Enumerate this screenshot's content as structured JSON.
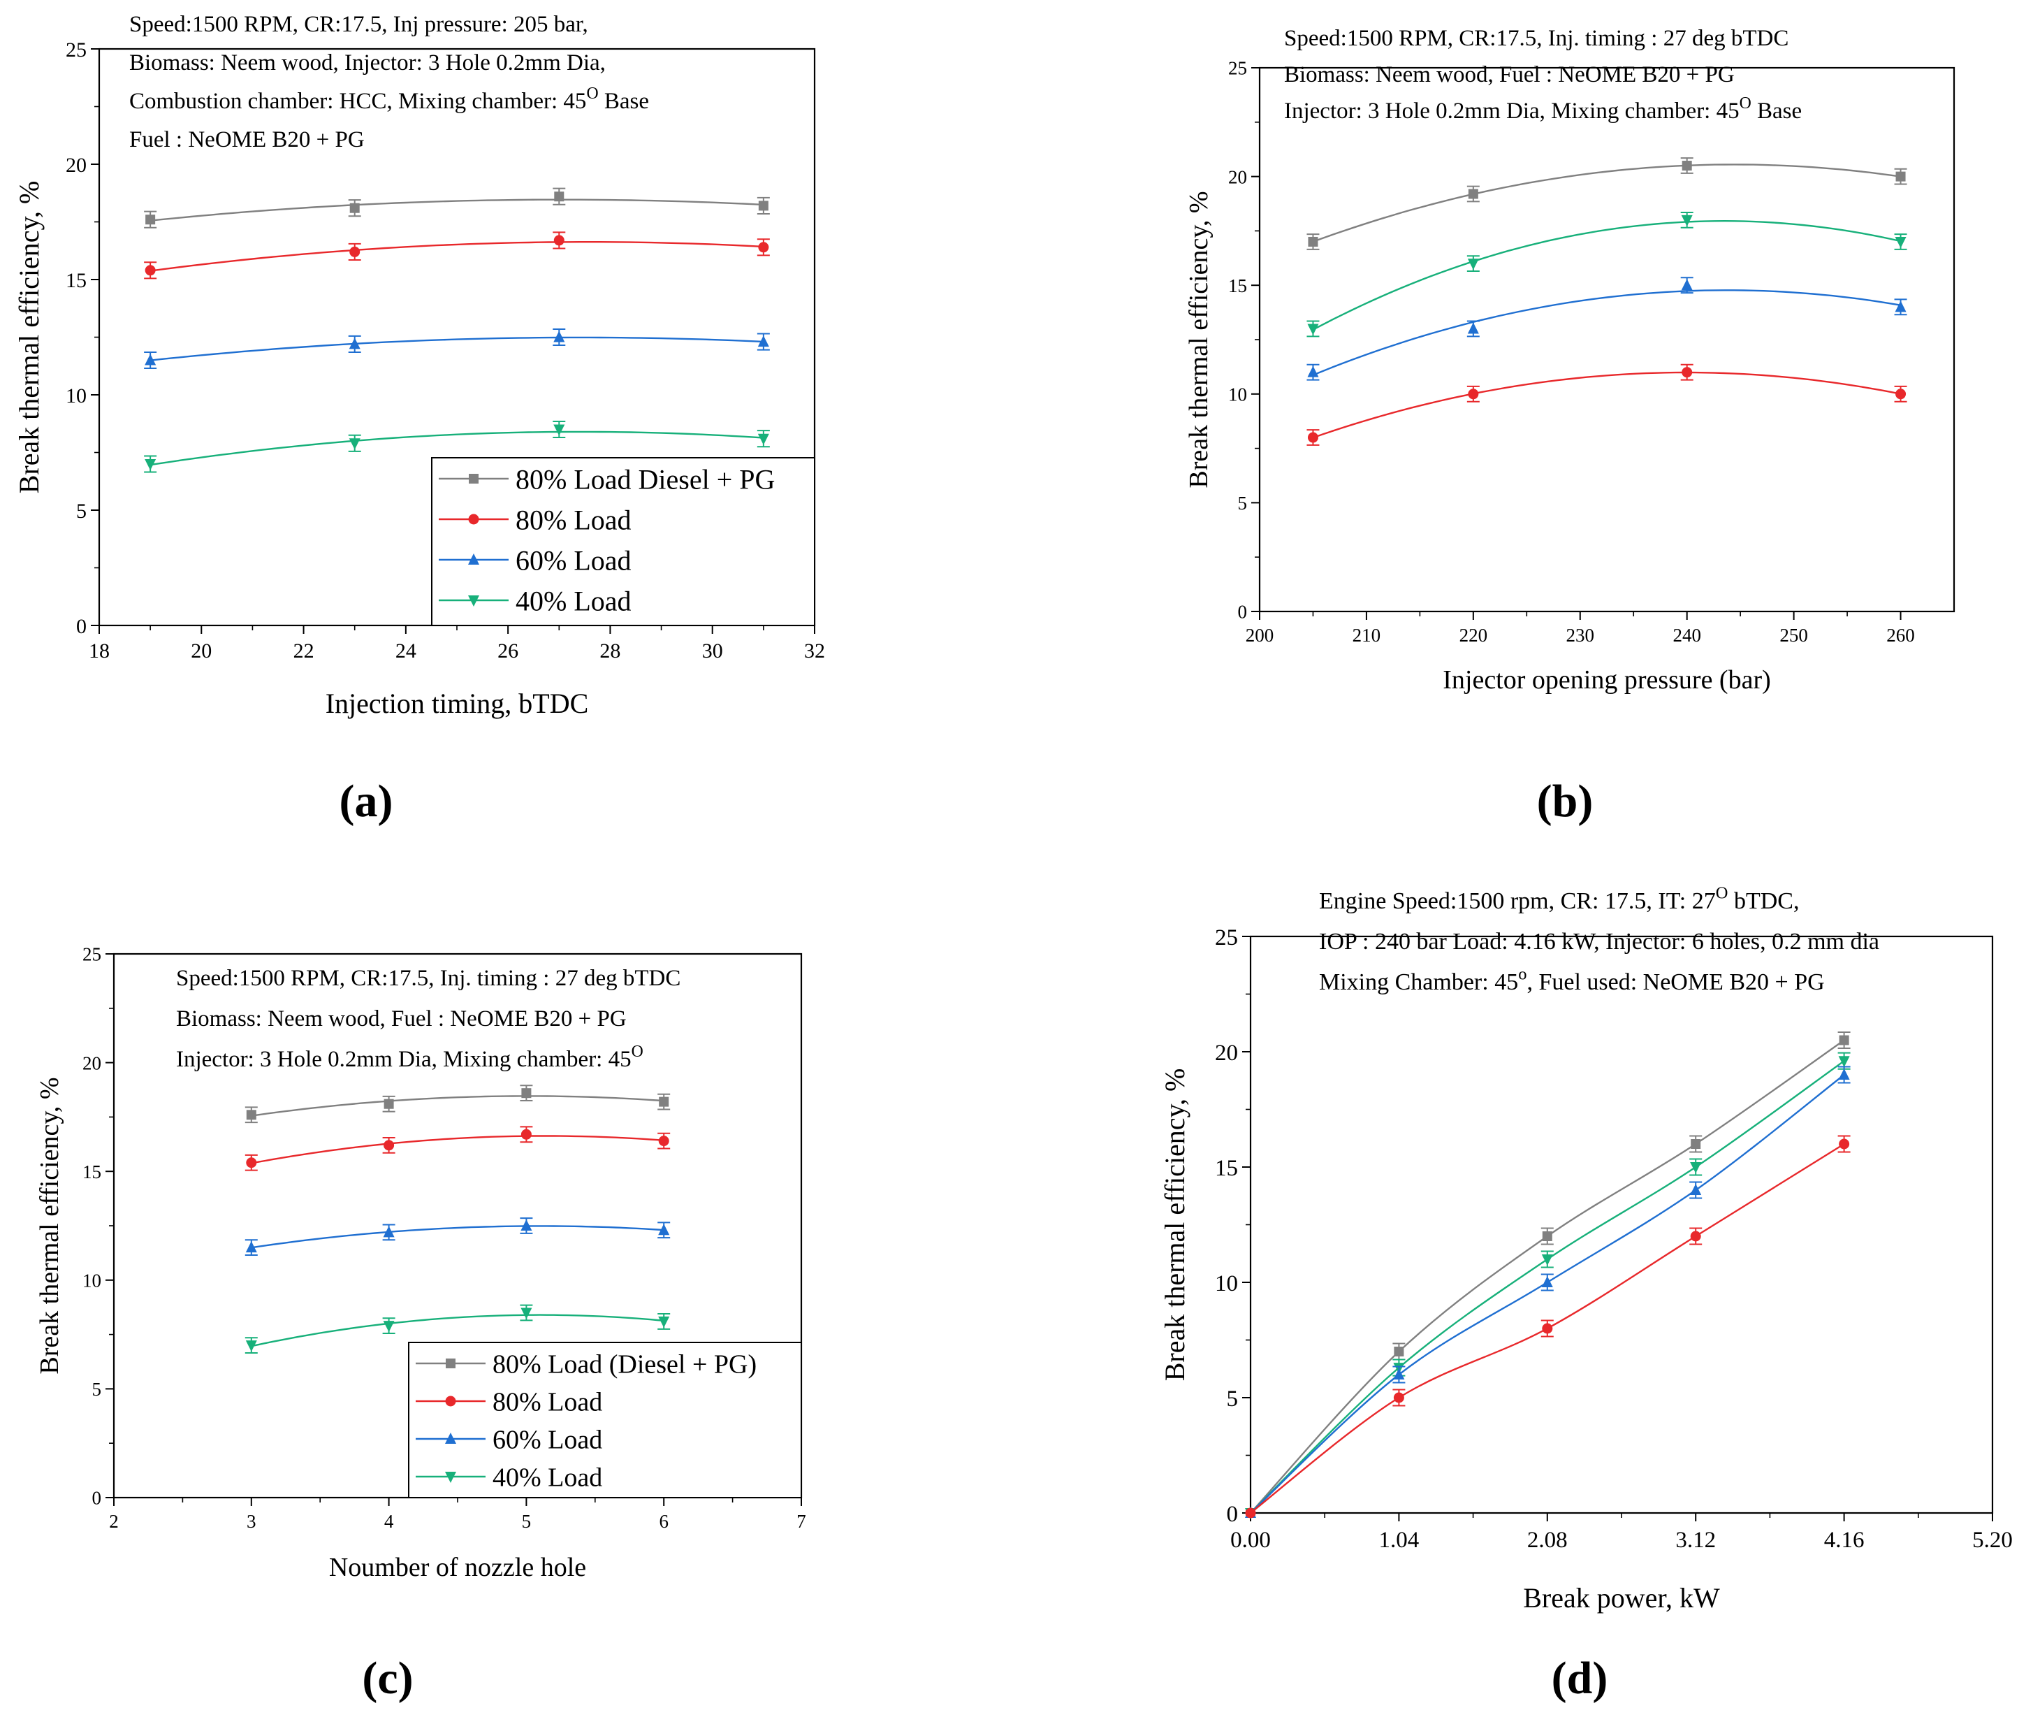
{
  "chart_data": [
    {
      "id": "a",
      "panel_label": "(a)",
      "type": "line",
      "title": "",
      "xlabel": "Injection timing, bTDC",
      "ylabel": "Break thermal efficiency, %",
      "xlim": [
        18,
        32
      ],
      "ylim": [
        0,
        25
      ],
      "xticks": [
        18,
        20,
        22,
        24,
        26,
        28,
        30,
        32
      ],
      "yticks": [
        0,
        5,
        10,
        15,
        20,
        25
      ],
      "xtick_labels": [
        "18",
        "20",
        "22",
        "24",
        "26",
        "28",
        "30",
        "32"
      ],
      "annotations": [
        {
          "text": "Speed:1500 RPM, CR:17.5, Inj pressure: 205 bar,",
          "sup": "",
          "tail": ""
        },
        {
          "text": "Biomass: Neem wood, Injector: 3 Hole 0.2mm Dia,",
          "sup": "",
          "tail": ""
        },
        {
          "text": "Combustion chamber: HCC, Mixing chamber: 45",
          "sup": "O",
          "tail": " Base"
        },
        {
          "text": "Fuel : NeOME B20 + PG",
          "sup": "",
          "tail": ""
        }
      ],
      "legend_position": "bottom-right",
      "grid": false,
      "x": [
        19,
        23,
        27,
        31
      ],
      "series": [
        {
          "name": "80% Load Diesel + PG",
          "color": "#808080",
          "marker": "square",
          "values": [
            17.6,
            18.1,
            18.6,
            18.2
          ],
          "error": 0.35
        },
        {
          "name": "80% Load",
          "color": "#e8282b",
          "marker": "circle",
          "values": [
            15.4,
            16.2,
            16.7,
            16.4
          ],
          "error": 0.35
        },
        {
          "name": "60% Load",
          "color": "#1f6fd1",
          "marker": "triangle-up",
          "values": [
            11.5,
            12.2,
            12.5,
            12.3
          ],
          "error": 0.35
        },
        {
          "name": "40% Load",
          "color": "#17b07a",
          "marker": "triangle-down",
          "values": [
            7.0,
            7.9,
            8.5,
            8.1
          ],
          "error": 0.35
        }
      ]
    },
    {
      "id": "b",
      "panel_label": "(b)",
      "type": "line",
      "title": "",
      "xlabel": "Injector opening pressure (bar)",
      "ylabel": "Break thermal efficiency, %",
      "xlim": [
        200,
        265
      ],
      "ylim": [
        0,
        25
      ],
      "xticks": [
        200,
        210,
        220,
        230,
        240,
        250,
        260
      ],
      "yticks": [
        0,
        5,
        10,
        15,
        20,
        25
      ],
      "xtick_labels": [
        "200",
        "210",
        "220",
        "230",
        "240",
        "250",
        "260"
      ],
      "annotations": [
        {
          "text": "Speed:1500 RPM, CR:17.5, Inj. timing : 27 deg bTDC",
          "sup": "",
          "tail": ""
        },
        {
          "text": "Biomass: Neem wood, Fuel : NeOME B20 + PG",
          "sup": "",
          "tail": ""
        },
        {
          "text": "Injector: 3 Hole 0.2mm Dia, Mixing chamber: 45",
          "sup": "O",
          "tail": " Base"
        }
      ],
      "legend_position": "none",
      "grid": false,
      "x": [
        205,
        220,
        240,
        260
      ],
      "series": [
        {
          "name": "80% Load Diesel + PG",
          "color": "#808080",
          "marker": "square",
          "values": [
            17.0,
            19.2,
            20.5,
            20.0
          ],
          "error": 0.35
        },
        {
          "name": "40% Load",
          "color": "#17b07a",
          "marker": "triangle-down",
          "values": [
            13.0,
            16.0,
            18.0,
            17.0
          ],
          "error": 0.35
        },
        {
          "name": "60% Load",
          "color": "#1f6fd1",
          "marker": "triangle-up",
          "values": [
            11.0,
            13.0,
            15.0,
            14.0
          ],
          "error": 0.35
        },
        {
          "name": "80% Load",
          "color": "#e8282b",
          "marker": "circle",
          "values": [
            8.0,
            10.0,
            11.0,
            10.0
          ],
          "error": 0.35
        }
      ]
    },
    {
      "id": "c",
      "panel_label": "(c)",
      "type": "line",
      "title": "",
      "xlabel": "Noumber of nozzle hole",
      "ylabel": "Break thermal efficiency, %",
      "xlim": [
        2,
        7
      ],
      "ylim": [
        0,
        25
      ],
      "xticks": [
        2,
        3,
        4,
        5,
        6,
        7
      ],
      "yticks": [
        0,
        5,
        10,
        15,
        20,
        25
      ],
      "xtick_labels": [
        "2",
        "3",
        "4",
        "5",
        "6",
        "7"
      ],
      "annotations": [
        {
          "text": "Speed:1500 RPM, CR:17.5, Inj. timing : 27 deg bTDC",
          "sup": "",
          "tail": ""
        },
        {
          "text": "Biomass: Neem wood, Fuel : NeOME B20 + PG",
          "sup": "",
          "tail": ""
        },
        {
          "text": "Injector: 3 Hole 0.2mm Dia, Mixing chamber: 45",
          "sup": "O",
          "tail": ""
        }
      ],
      "legend_position": "bottom-right",
      "grid": false,
      "x": [
        3,
        4,
        5,
        6
      ],
      "series": [
        {
          "name": "80% Load (Diesel + PG)",
          "color": "#808080",
          "marker": "square",
          "values": [
            17.6,
            18.1,
            18.6,
            18.2
          ],
          "error": 0.35
        },
        {
          "name": "80% Load",
          "color": "#e8282b",
          "marker": "circle",
          "values": [
            15.4,
            16.2,
            16.7,
            16.4
          ],
          "error": 0.35
        },
        {
          "name": "60% Load",
          "color": "#1f6fd1",
          "marker": "triangle-up",
          "values": [
            11.5,
            12.2,
            12.5,
            12.3
          ],
          "error": 0.35
        },
        {
          "name": "40% Load",
          "color": "#17b07a",
          "marker": "triangle-down",
          "values": [
            7.0,
            7.9,
            8.5,
            8.1
          ],
          "error": 0.35
        }
      ]
    },
    {
      "id": "d",
      "panel_label": "(d)",
      "type": "line",
      "title": "",
      "xlabel": "Break power, kW",
      "ylabel": "Break thermal efficiency, %",
      "xlim": [
        0,
        5.2
      ],
      "ylim": [
        0,
        25
      ],
      "xticks": [
        0,
        1.04,
        2.08,
        3.12,
        4.16,
        5.2
      ],
      "yticks": [
        0,
        5,
        10,
        15,
        20,
        25
      ],
      "xtick_labels": [
        "0.00",
        "1.04",
        "2.08",
        "3.12",
        "4.16",
        "5.20"
      ],
      "annotations": [
        {
          "text": "Engine Speed:1500 rpm, CR: 17.5, IT: 27",
          "sup": "O",
          "tail": " bTDC,"
        },
        {
          "text": "IOP : 240 bar Load: 4.16 kW, Injector: 6 holes, 0.2 mm dia",
          "sup": "",
          "tail": ""
        },
        {
          "text": "Mixing Chamber: 45",
          "sup": "o",
          "tail": ",  Fuel used: NeOME B20 + PG"
        }
      ],
      "legend_position": "none",
      "grid": false,
      "x": [
        0,
        1.04,
        2.08,
        3.12,
        4.16
      ],
      "series": [
        {
          "name": "80% Load Diesel + PG",
          "color": "#808080",
          "marker": "square",
          "values": [
            0,
            7.0,
            12.0,
            16.0,
            20.5
          ],
          "error": 0.35
        },
        {
          "name": "40% Load",
          "color": "#17b07a",
          "marker": "triangle-down",
          "values": [
            0,
            6.3,
            11.0,
            15.0,
            19.6
          ],
          "error": 0.35
        },
        {
          "name": "60% Load",
          "color": "#1f6fd1",
          "marker": "triangle-up",
          "values": [
            0,
            6.0,
            10.0,
            14.0,
            19.0
          ],
          "error": 0.35
        },
        {
          "name": "80% Load",
          "color": "#e8282b",
          "marker": "circle",
          "values": [
            0,
            5.0,
            8.0,
            12.0,
            16.0
          ],
          "error": 0.35
        }
      ]
    }
  ]
}
